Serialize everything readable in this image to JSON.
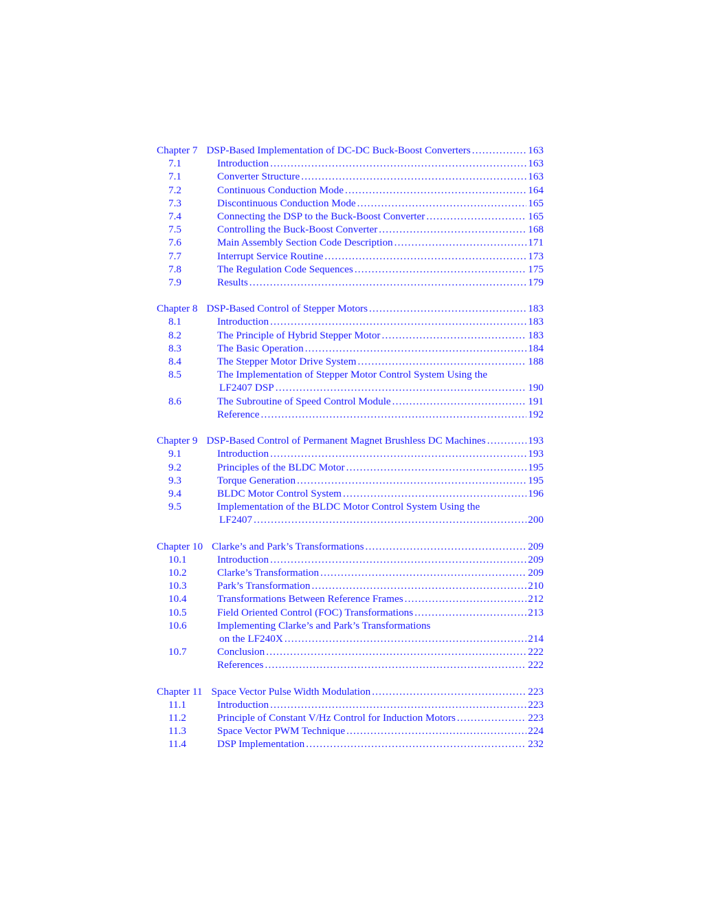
{
  "chapters": [
    {
      "label": "Chapter 7",
      "title": "DSP-Based Implementation of DC-DC Buck-Boost Converters",
      "page": "163",
      "entries": [
        {
          "num": "7.1",
          "title": "Introduction",
          "page": "163"
        },
        {
          "num": "7.1",
          "title": "Converter Structure",
          "page": "163"
        },
        {
          "num": "7.2",
          "title": "Continuous Conduction Mode",
          "page": "164"
        },
        {
          "num": "7.3",
          "title": "Discontinuous Conduction Mode",
          "page": "165"
        },
        {
          "num": "7.4",
          "title": "Connecting the DSP to the Buck-Boost Converter",
          "page": "165"
        },
        {
          "num": "7.5",
          "title": "Controlling the Buck-Boost Converter",
          "page": "168"
        },
        {
          "num": "7.6",
          "title": "Main Assembly Section Code Description",
          "page": "171"
        },
        {
          "num": "7.7",
          "title": "Interrupt Service Routine",
          "page": "173"
        },
        {
          "num": "7.8",
          "title": "The Regulation Code Sequences",
          "page": "175"
        },
        {
          "num": "7.9",
          "title": "Results",
          "page": "179"
        }
      ]
    },
    {
      "label": "Chapter 8",
      "title": "DSP-Based Control of Stepper Motors",
      "page": "183",
      "entries": [
        {
          "num": "8.1",
          "title": "Introduction",
          "page": "183"
        },
        {
          "num": "8.2",
          "title": "The Principle of Hybrid Stepper Motor",
          "page": "183"
        },
        {
          "num": "8.3",
          "title": "The Basic Operation",
          "page": "184"
        },
        {
          "num": "8.4",
          "title": "The Stepper Motor Drive System",
          "page": "188"
        },
        {
          "num": "8.5",
          "title": "The Implementation of Stepper Motor Control System Using the",
          "continuation": "LF2407 DSP",
          "page": "190"
        },
        {
          "num": "8.6",
          "title": "The Subroutine of Speed Control Module",
          "page": "191"
        },
        {
          "num": "",
          "title": "Reference",
          "page": "192"
        }
      ]
    },
    {
      "label": "Chapter 9",
      "title": "DSP-Based Control of Permanent Magnet Brushless DC Machines",
      "page": "193",
      "entries": [
        {
          "num": "9.1",
          "title": "Introduction",
          "page": "193"
        },
        {
          "num": "9.2",
          "title": "Principles of the BLDC Motor",
          "page": "195"
        },
        {
          "num": "9.3",
          "title": "Torque Generation",
          "page": "195"
        },
        {
          "num": "9.4",
          "title": "BLDC Motor Control System",
          "page": "196"
        },
        {
          "num": "9.5",
          "title": "Implementation of the BLDC Motor Control System Using the",
          "continuation": "LF2407",
          "page": "200"
        }
      ]
    },
    {
      "label": "Chapter 10",
      "title": "Clarke’s and Park’s Transformations",
      "page": "209",
      "entries": [
        {
          "num": "10.1",
          "title": "Introduction",
          "page": "209"
        },
        {
          "num": "10.2",
          "title": "Clarke’s Transformation",
          "page": "209"
        },
        {
          "num": "10.3",
          "title": "Park’s Transformation",
          "page": "210"
        },
        {
          "num": "10.4",
          "title": "Transformations Between Reference Frames",
          "page": "212"
        },
        {
          "num": "10.5",
          "title": "Field Oriented Control (FOC) Transformations",
          "page": "213"
        },
        {
          "num": "10.6",
          "title": "Implementing Clarke’s and Park’s Transformations",
          "continuation": "on the LF240X",
          "page": "214"
        },
        {
          "num": "10.7",
          "title": "Conclusion",
          "page": "222"
        },
        {
          "num": "",
          "title": "References",
          "page": "222"
        }
      ]
    },
    {
      "label": "Chapter 11",
      "title": "Space Vector Pulse Width Modulation",
      "page": "223",
      "entries": [
        {
          "num": "11.1",
          "title": "Introduction",
          "page": "223"
        },
        {
          "num": "11.2",
          "title": "Principle of Constant V/Hz Control for Induction Motors",
          "page": "223"
        },
        {
          "num": "11.3",
          "title": "Space Vector PWM Technique",
          "page": "224"
        },
        {
          "num": "11.4",
          "title": "DSP Implementation",
          "page": "232"
        }
      ]
    }
  ],
  "colors": {
    "text": "#1a1aff",
    "background": "#ffffff"
  }
}
